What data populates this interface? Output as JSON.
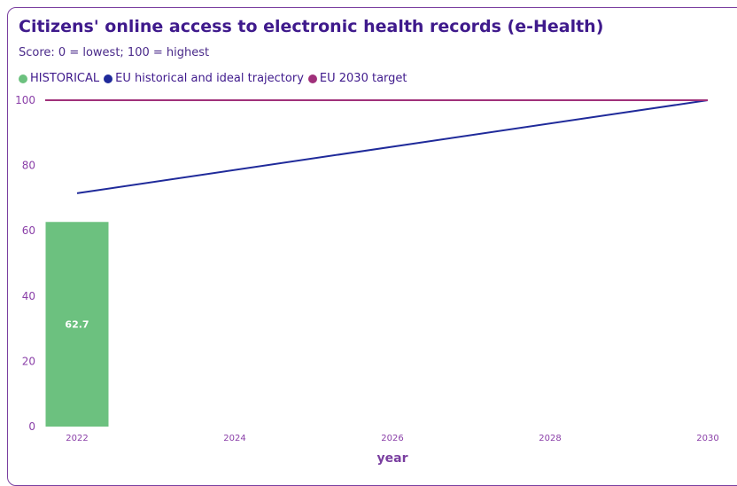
{
  "chart_data": {
    "type": "bar",
    "title": "Citizens' online access to electronic health records (e-Health)",
    "subtitle": "Score: 0 = lowest; 100 = highest",
    "xlabel": "year",
    "ylabel": "",
    "ylim": [
      0,
      100
    ],
    "yticks": [
      0,
      20,
      40,
      60,
      80,
      100
    ],
    "xlim": [
      2022,
      2030
    ],
    "xticks": [
      2022,
      2024,
      2026,
      2028,
      2030
    ],
    "legend": [
      {
        "name": "HISTORICAL",
        "color": "#6cc17f"
      },
      {
        "name": "EU historical and ideal trajectory",
        "color": "#1f2a9a"
      },
      {
        "name": "EU 2030 target",
        "color": "#a0307a"
      }
    ],
    "legend_position": "top-left",
    "grid": false,
    "series": [
      {
        "name": "HISTORICAL",
        "type": "bar",
        "x": [
          2022
        ],
        "values": [
          62.7
        ],
        "color": "#6cc17f",
        "labels": [
          "62.7"
        ]
      },
      {
        "name": "EU historical and ideal trajectory",
        "type": "line",
        "x": [
          2022,
          2030
        ],
        "values": [
          71.5,
          100
        ],
        "color": "#1f2a9a"
      },
      {
        "name": "EU 2030 target",
        "type": "line",
        "x": [
          2022,
          2030
        ],
        "values": [
          100,
          100
        ],
        "color": "#a0307a"
      }
    ]
  }
}
